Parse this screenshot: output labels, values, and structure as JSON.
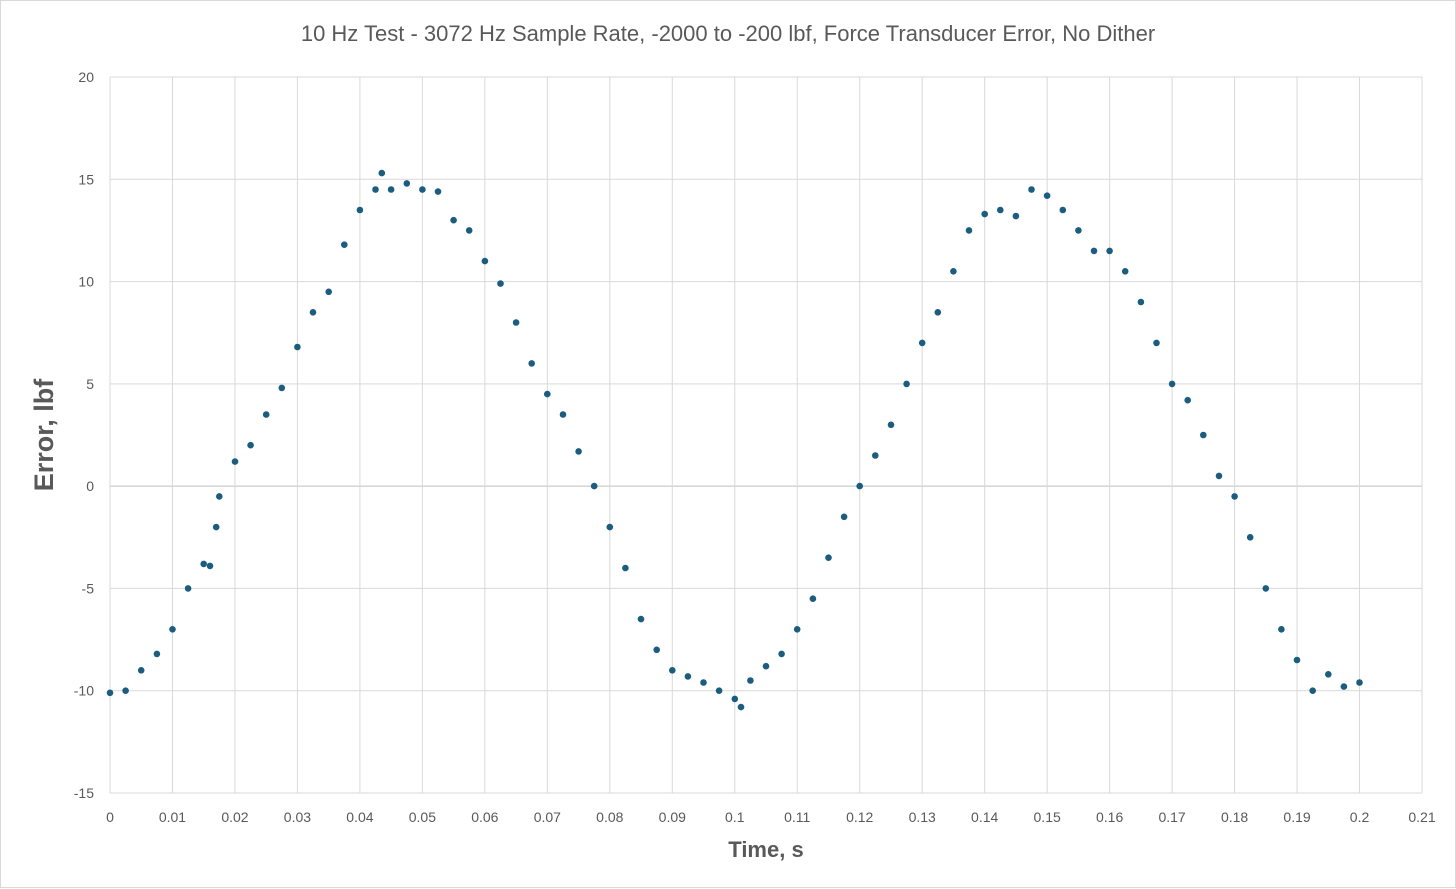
{
  "chart_data": {
    "type": "scatter",
    "title": "10 Hz Test - 3072 Hz Sample Rate, -2000 to -200 lbf, Force Transducer Error, No Dither",
    "xlabel": "Time, s",
    "ylabel": "Error, lbf",
    "xlim": [
      0,
      0.21
    ],
    "ylim": [
      -15,
      20
    ],
    "xticks": [
      "0",
      "0.01",
      "0.02",
      "0.03",
      "0.04",
      "0.05",
      "0.06",
      "0.07",
      "0.08",
      "0.09",
      "0.1",
      "0.11",
      "0.12",
      "0.13",
      "0.14",
      "0.15",
      "0.16",
      "0.17",
      "0.18",
      "0.19",
      "0.2",
      "0.21"
    ],
    "yticks": [
      "20",
      "15",
      "10",
      "5",
      "0",
      "-5",
      "-10",
      "-15"
    ],
    "grid": true,
    "marker_color": "#1b5c7f",
    "series": [
      {
        "name": "Force Transducer Error",
        "x": [
          0.0,
          0.0025,
          0.005,
          0.0075,
          0.01,
          0.0125,
          0.015,
          0.016,
          0.017,
          0.0175,
          0.02,
          0.0225,
          0.025,
          0.0275,
          0.03,
          0.0325,
          0.035,
          0.0375,
          0.04,
          0.0425,
          0.0435,
          0.045,
          0.0475,
          0.05,
          0.0525,
          0.055,
          0.0575,
          0.06,
          0.0625,
          0.065,
          0.0675,
          0.07,
          0.0725,
          0.075,
          0.0775,
          0.08,
          0.0825,
          0.085,
          0.0875,
          0.09,
          0.0925,
          0.095,
          0.0975,
          0.1,
          0.101,
          0.1025,
          0.105,
          0.1075,
          0.11,
          0.1125,
          0.115,
          0.1175,
          0.12,
          0.1225,
          0.125,
          0.1275,
          0.13,
          0.1325,
          0.135,
          0.1375,
          0.14,
          0.1425,
          0.145,
          0.1475,
          0.15,
          0.1525,
          0.155,
          0.1575,
          0.16,
          0.1625,
          0.165,
          0.1675,
          0.17,
          0.1725,
          0.175,
          0.1775,
          0.18,
          0.1825,
          0.185,
          0.1875,
          0.19,
          0.1925,
          0.195,
          0.1975,
          0.2
        ],
        "y": [
          -10.1,
          -10.0,
          -9.0,
          -8.2,
          -7.0,
          -5.0,
          -3.8,
          -3.9,
          -2.0,
          -0.5,
          1.2,
          2.0,
          3.5,
          4.8,
          6.8,
          8.5,
          9.5,
          11.8,
          13.5,
          14.5,
          15.3,
          14.5,
          14.8,
          14.5,
          14.4,
          13.0,
          12.5,
          11.0,
          9.9,
          8.0,
          6.0,
          4.5,
          3.5,
          1.7,
          0.0,
          -2.0,
          -4.0,
          -6.5,
          -8.0,
          -9.0,
          -9.3,
          -9.6,
          -10.0,
          -10.4,
          -10.8,
          -9.5,
          -8.8,
          -8.2,
          -7.0,
          -5.5,
          -3.5,
          -1.5,
          0.0,
          1.5,
          3.0,
          5.0,
          7.0,
          8.5,
          10.5,
          12.5,
          13.3,
          13.5,
          13.2,
          14.5,
          14.2,
          13.5,
          12.5,
          11.5,
          11.5,
          10.5,
          9.0,
          7.0,
          5.0,
          4.2,
          2.5,
          0.5,
          -0.5,
          -2.5,
          -5.0,
          -7.0,
          -8.5,
          -10.0,
          -9.2,
          -9.8,
          -9.6
        ]
      }
    ]
  }
}
